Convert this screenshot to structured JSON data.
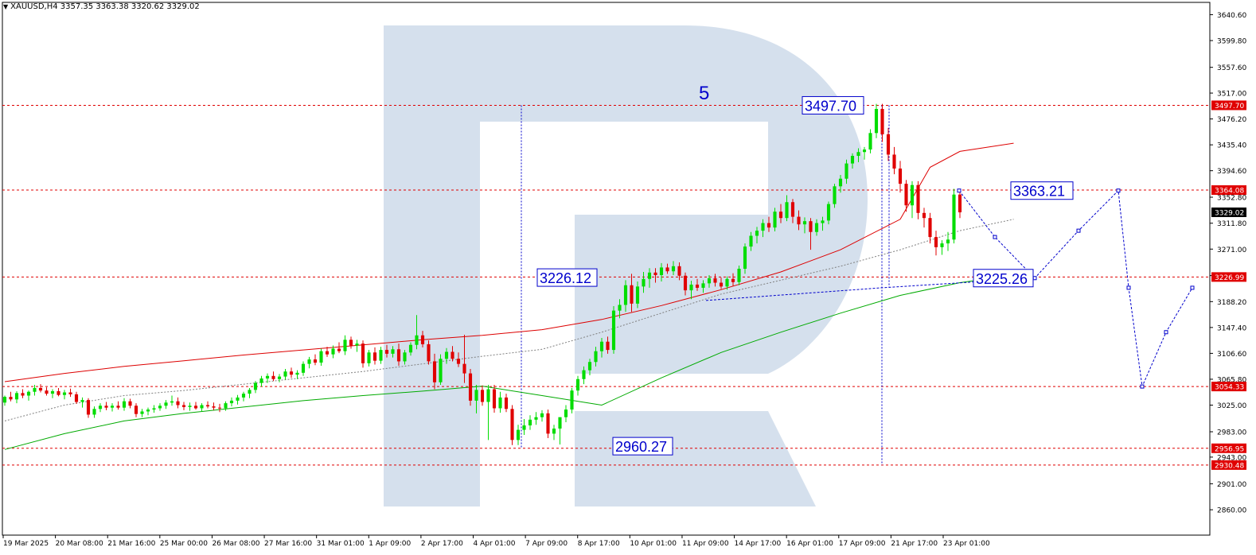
{
  "header": {
    "symbol": "XAUUSD,H4",
    "ohlc": "3357.35 3363.38 3320.62 3329.02"
  },
  "chart_data": {
    "type": "candlestick",
    "symbol": "XAUUSD",
    "timeframe": "H4",
    "ylim": [
      2820,
      3660
    ],
    "y_ticks": [
      "3640.60",
      "3599.80",
      "3557.60",
      "3517.00",
      "3476.20",
      "3435.40",
      "3394.60",
      "3352.80",
      "3311.80",
      "3271.00",
      "3229.20",
      "3188.20",
      "3147.40",
      "3106.60",
      "3065.80",
      "3025.00",
      "2983.00",
      "2943.00",
      "2901.00",
      "2860.00"
    ],
    "x_ticks": [
      "19 Mar 2025",
      "20 Mar 08:00",
      "21 Mar 16:00",
      "25 Mar 00:00",
      "26 Mar 08:00",
      "27 Mar 16:00",
      "31 Mar 01:00",
      "1 Apr 09:00",
      "2 Apr 17:00",
      "4 Apr 01:00",
      "7 Apr 09:00",
      "8 Apr 17:00",
      "10 Apr 01:00",
      "11 Apr 09:00",
      "14 Apr 17:00",
      "16 Apr 01:00",
      "17 Apr 09:00",
      "21 Apr 17:00",
      "23 Apr 01:00"
    ],
    "candles": [
      [
        3029,
        3040,
        3024,
        3038
      ],
      [
        3038,
        3046,
        3031,
        3034
      ],
      [
        3034,
        3047,
        3028,
        3044
      ],
      [
        3044,
        3050,
        3036,
        3040
      ],
      [
        3040,
        3048,
        3032,
        3046
      ],
      [
        3046,
        3057,
        3040,
        3052
      ],
      [
        3052,
        3058,
        3045,
        3048
      ],
      [
        3048,
        3053,
        3040,
        3043
      ],
      [
        3043,
        3050,
        3036,
        3047
      ],
      [
        3047,
        3052,
        3039,
        3041
      ],
      [
        3041,
        3049,
        3034,
        3045
      ],
      [
        3045,
        3051,
        3038,
        3042
      ],
      [
        3042,
        3046,
        3027,
        3030
      ],
      [
        3030,
        3037,
        3021,
        3033
      ],
      [
        3033,
        3036,
        3005,
        3010
      ],
      [
        3010,
        3023,
        3005,
        3019
      ],
      [
        3019,
        3028,
        3014,
        3024
      ],
      [
        3024,
        3030,
        3017,
        3021
      ],
      [
        3021,
        3028,
        3015,
        3024
      ],
      [
        3024,
        3031,
        3018,
        3021
      ],
      [
        3021,
        3036,
        3016,
        3031
      ],
      [
        3031,
        3035,
        3020,
        3024
      ],
      [
        3024,
        3028,
        3006,
        3011
      ],
      [
        3011,
        3019,
        3006,
        3015
      ],
      [
        3015,
        3021,
        3009,
        3018
      ],
      [
        3018,
        3025,
        3013,
        3020
      ],
      [
        3020,
        3028,
        3016,
        3024
      ],
      [
        3024,
        3033,
        3019,
        3029
      ],
      [
        3029,
        3040,
        3024,
        3031
      ],
      [
        3031,
        3037,
        3020,
        3025
      ],
      [
        3025,
        3030,
        3017,
        3022
      ],
      [
        3022,
        3029,
        3016,
        3024
      ],
      [
        3024,
        3030,
        3018,
        3020
      ],
      [
        3020,
        3028,
        3015,
        3025
      ],
      [
        3025,
        3031,
        3020,
        3023
      ],
      [
        3023,
        3029,
        3017,
        3021
      ],
      [
        3021,
        3027,
        3014,
        3020
      ],
      [
        3020,
        3031,
        3016,
        3028
      ],
      [
        3028,
        3037,
        3023,
        3032
      ],
      [
        3032,
        3041,
        3026,
        3037
      ],
      [
        3037,
        3046,
        3031,
        3043
      ],
      [
        3043,
        3052,
        3036,
        3049
      ],
      [
        3049,
        3063,
        3044,
        3060
      ],
      [
        3060,
        3071,
        3054,
        3067
      ],
      [
        3067,
        3075,
        3060,
        3071
      ],
      [
        3071,
        3078,
        3063,
        3066
      ],
      [
        3066,
        3074,
        3061,
        3070
      ],
      [
        3070,
        3082,
        3065,
        3078
      ],
      [
        3078,
        3084,
        3068,
        3073
      ],
      [
        3073,
        3080,
        3066,
        3076
      ],
      [
        3076,
        3094,
        3071,
        3090
      ],
      [
        3090,
        3101,
        3083,
        3097
      ],
      [
        3097,
        3105,
        3088,
        3092
      ],
      [
        3092,
        3114,
        3087,
        3110
      ],
      [
        3110,
        3117,
        3101,
        3105
      ],
      [
        3105,
        3119,
        3099,
        3114
      ],
      [
        3114,
        3124,
        3107,
        3110
      ],
      [
        3110,
        3135,
        3104,
        3128
      ],
      [
        3128,
        3133,
        3114,
        3119
      ],
      [
        3119,
        3128,
        3109,
        3122
      ],
      [
        3122,
        3127,
        3084,
        3091
      ],
      [
        3091,
        3112,
        3086,
        3108
      ],
      [
        3108,
        3116,
        3089,
        3095
      ],
      [
        3095,
        3117,
        3090,
        3112
      ],
      [
        3112,
        3120,
        3100,
        3106
      ],
      [
        3106,
        3118,
        3100,
        3113
      ],
      [
        3113,
        3122,
        3087,
        3094
      ],
      [
        3094,
        3112,
        3089,
        3108
      ],
      [
        3108,
        3124,
        3103,
        3120
      ],
      [
        3120,
        3167,
        3113,
        3135
      ],
      [
        3135,
        3142,
        3116,
        3121
      ],
      [
        3121,
        3127,
        3089,
        3094
      ],
      [
        3094,
        3106,
        3050,
        3061
      ],
      [
        3061,
        3105,
        3057,
        3098
      ],
      [
        3098,
        3115,
        3090,
        3109
      ],
      [
        3109,
        3118,
        3094,
        3098
      ],
      [
        3098,
        3108,
        3085,
        3090
      ],
      [
        3090,
        3136,
        3060,
        3075
      ],
      [
        3075,
        3082,
        3024,
        3032
      ],
      [
        3032,
        3057,
        3012,
        3049
      ],
      [
        3049,
        3056,
        3024,
        3030
      ],
      [
        3030,
        3057,
        2970,
        3050
      ],
      [
        3050,
        3057,
        3013,
        3020
      ],
      [
        3020,
        3046,
        3013,
        3037
      ],
      [
        3037,
        3043,
        3014,
        3019
      ],
      [
        3019,
        3025,
        2962,
        2970
      ],
      [
        2970,
        2994,
        2962,
        2986
      ],
      [
        2986,
        3003,
        2978,
        2993
      ],
      [
        2993,
        3009,
        2986,
        3002
      ],
      [
        3002,
        3014,
        2994,
        3006
      ],
      [
        3006,
        3017,
        2999,
        3012
      ],
      [
        3012,
        3018,
        2973,
        2980
      ],
      [
        2980,
        2994,
        2970,
        2988
      ],
      [
        2988,
        3000,
        2963,
        3006
      ],
      [
        3006,
        3025,
        2998,
        3018
      ],
      [
        3018,
        3052,
        3012,
        3048
      ],
      [
        3048,
        3071,
        3040,
        3066
      ],
      [
        3066,
        3086,
        3058,
        3080
      ],
      [
        3080,
        3098,
        3072,
        3093
      ],
      [
        3093,
        3117,
        3086,
        3110
      ],
      [
        3110,
        3131,
        3100,
        3125
      ],
      [
        3125,
        3133,
        3106,
        3112
      ],
      [
        3112,
        3181,
        3106,
        3174
      ],
      [
        3174,
        3192,
        3162,
        3183
      ],
      [
        3183,
        3222,
        3172,
        3214
      ],
      [
        3214,
        3232,
        3172,
        3185
      ],
      [
        3185,
        3220,
        3178,
        3212
      ],
      [
        3212,
        3235,
        3202,
        3224
      ],
      [
        3224,
        3241,
        3210,
        3234
      ],
      [
        3234,
        3241,
        3218,
        3230
      ],
      [
        3230,
        3249,
        3220,
        3242
      ],
      [
        3242,
        3248,
        3232,
        3236
      ],
      [
        3236,
        3252,
        3230,
        3244
      ],
      [
        3244,
        3250,
        3222,
        3229
      ],
      [
        3229,
        3234,
        3198,
        3206
      ],
      [
        3206,
        3221,
        3192,
        3215
      ],
      [
        3215,
        3224,
        3205,
        3210
      ],
      [
        3210,
        3222,
        3202,
        3217
      ],
      [
        3217,
        3230,
        3210,
        3225
      ],
      [
        3225,
        3232,
        3212,
        3218
      ],
      [
        3218,
        3226,
        3208,
        3212
      ],
      [
        3212,
        3228,
        3207,
        3224
      ],
      [
        3224,
        3233,
        3213,
        3219
      ],
      [
        3219,
        3245,
        3214,
        3240
      ],
      [
        3240,
        3280,
        3232,
        3275
      ],
      [
        3275,
        3298,
        3268,
        3292
      ],
      [
        3292,
        3306,
        3280,
        3300
      ],
      [
        3300,
        3318,
        3290,
        3312
      ],
      [
        3312,
        3322,
        3298,
        3305
      ],
      [
        3305,
        3336,
        3299,
        3330
      ],
      [
        3330,
        3342,
        3312,
        3320
      ],
      [
        3320,
        3356,
        3315,
        3345
      ],
      [
        3345,
        3350,
        3312,
        3322
      ],
      [
        3322,
        3332,
        3301,
        3310
      ],
      [
        3310,
        3321,
        3296,
        3315
      ],
      [
        3315,
        3320,
        3270,
        3298
      ],
      [
        3298,
        3318,
        3292,
        3312
      ],
      [
        3312,
        3322,
        3300,
        3316
      ],
      [
        3316,
        3346,
        3310,
        3342
      ],
      [
        3342,
        3374,
        3336,
        3370
      ],
      [
        3370,
        3388,
        3360,
        3382
      ],
      [
        3382,
        3412,
        3374,
        3406
      ],
      [
        3406,
        3422,
        3398,
        3418
      ],
      [
        3418,
        3430,
        3408,
        3424
      ],
      [
        3424,
        3432,
        3412,
        3428
      ],
      [
        3428,
        3460,
        3422,
        3454
      ],
      [
        3454,
        3500,
        3446,
        3492
      ],
      [
        3492,
        3500,
        3440,
        3452
      ],
      [
        3452,
        3462,
        3410,
        3420
      ],
      [
        3420,
        3432,
        3389,
        3398
      ],
      [
        3398,
        3410,
        3360,
        3374
      ],
      [
        3374,
        3380,
        3330,
        3340
      ],
      [
        3340,
        3378,
        3320,
        3372
      ],
      [
        3372,
        3378,
        3318,
        3328
      ],
      [
        3328,
        3336,
        3305,
        3320
      ],
      [
        3320,
        3328,
        3280,
        3290
      ],
      [
        3290,
        3300,
        3261,
        3274
      ],
      [
        3274,
        3285,
        3262,
        3280
      ],
      [
        3280,
        3298,
        3268,
        3286
      ],
      [
        3286,
        3366,
        3280,
        3357
      ],
      [
        3357,
        3363,
        3320,
        3329
      ]
    ],
    "moving_averages": [
      {
        "color": "#dd0000",
        "style": "solid",
        "points": [
          [
            0,
            3062
          ],
          [
            10,
            3075
          ],
          [
            20,
            3086
          ],
          [
            30,
            3095
          ],
          [
            40,
            3104
          ],
          [
            50,
            3112
          ],
          [
            60,
            3120
          ],
          [
            70,
            3128
          ],
          [
            80,
            3135
          ],
          [
            90,
            3144
          ],
          [
            100,
            3160
          ],
          [
            110,
            3182
          ],
          [
            120,
            3207
          ],
          [
            130,
            3235
          ],
          [
            140,
            3270
          ],
          [
            150,
            3318
          ],
          [
            155,
            3400
          ],
          [
            160,
            3425
          ],
          [
            169,
            3438
          ]
        ]
      },
      {
        "color": "#808080",
        "style": "dashed",
        "points": [
          [
            0,
            3000
          ],
          [
            10,
            3025
          ],
          [
            20,
            3040
          ],
          [
            30,
            3048
          ],
          [
            40,
            3058
          ],
          [
            50,
            3068
          ],
          [
            60,
            3078
          ],
          [
            70,
            3090
          ],
          [
            80,
            3102
          ],
          [
            90,
            3113
          ],
          [
            100,
            3140
          ],
          [
            110,
            3170
          ],
          [
            120,
            3200
          ],
          [
            130,
            3222
          ],
          [
            140,
            3244
          ],
          [
            150,
            3270
          ],
          [
            160,
            3300
          ],
          [
            169,
            3318
          ]
        ]
      },
      {
        "color": "#00aa00",
        "style": "solid",
        "points": [
          [
            0,
            2955
          ],
          [
            10,
            2980
          ],
          [
            20,
            3000
          ],
          [
            30,
            3012
          ],
          [
            40,
            3022
          ],
          [
            50,
            3032
          ],
          [
            60,
            3040
          ],
          [
            70,
            3047
          ],
          [
            80,
            3055
          ],
          [
            90,
            3040
          ],
          [
            100,
            3025
          ],
          [
            110,
            3068
          ],
          [
            120,
            3108
          ],
          [
            130,
            3140
          ],
          [
            140,
            3170
          ],
          [
            150,
            3198
          ],
          [
            160,
            3218
          ],
          [
            169,
            3230
          ]
        ]
      }
    ],
    "levels": [
      {
        "price": 3497.7,
        "label": "3497.70"
      },
      {
        "price": 3364.08,
        "label": "3364.08"
      },
      {
        "price": 3226.99,
        "label": "3226.99"
      },
      {
        "price": 3054.33,
        "label": "3054.33"
      },
      {
        "price": 2956.95,
        "label": "2956.95"
      },
      {
        "price": 2930.48,
        "label": "2930.48"
      }
    ],
    "current_price": {
      "price": 3329.02,
      "label": "3329.02"
    },
    "callouts": [
      {
        "text": "3497.70",
        "price": 3497.7
      },
      {
        "text": "3226.12",
        "price": 3226.12
      },
      {
        "text": "2960.27",
        "price": 2960.27
      },
      {
        "text": "3363.21",
        "price": 3363.21
      },
      {
        "text": "3225.26",
        "price": 3225.26
      }
    ],
    "wave_label": "5",
    "forecast_path": [
      3363.21,
      3290,
      3225.26,
      3300,
      3363.21,
      3210,
      3054.33,
      3140,
      3210
    ]
  }
}
